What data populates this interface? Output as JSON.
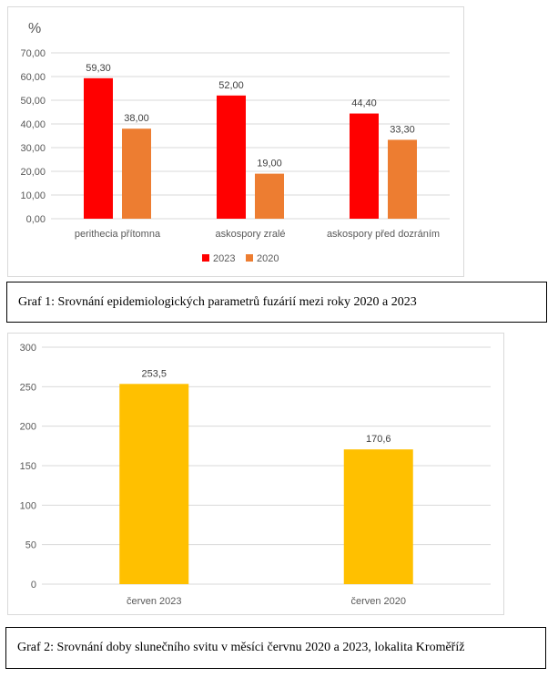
{
  "chart_data": [
    {
      "type": "bar",
      "unit_label": "%",
      "categories": [
        "perithecia přítomna",
        "askospory zralé",
        "askospory před dozráním"
      ],
      "series": [
        {
          "name": "2023",
          "values": [
            59.3,
            52.0,
            44.4
          ],
          "color": "#ff0000"
        },
        {
          "name": "2020",
          "values": [
            38.0,
            19.0,
            33.3
          ],
          "color": "#ed7d31"
        }
      ],
      "data_labels": [
        [
          "59,30",
          "52,00",
          "44,40"
        ],
        [
          "38,00",
          "19,00",
          "33,30"
        ]
      ],
      "ylim": [
        0,
        70
      ],
      "yticks": [
        "0,00",
        "10,00",
        "20,00",
        "30,00",
        "40,00",
        "50,00",
        "60,00",
        "70,00"
      ],
      "grid": true,
      "legend_position": "bottom"
    },
    {
      "type": "bar",
      "categories": [
        "červen 2023",
        "červen 2020"
      ],
      "series": [
        {
          "values": [
            253.5,
            170.6
          ],
          "color": "#ffc000"
        }
      ],
      "data_labels": [
        [
          "253,5",
          "170,6"
        ]
      ],
      "ylim": [
        0,
        300
      ],
      "yticks": [
        "0",
        "50",
        "100",
        "150",
        "200",
        "250",
        "300"
      ],
      "grid": true
    }
  ],
  "captions": {
    "graf1": "Graf 1: Srovnání epidemiologických parametrů fuzárií mezi roky 2020 a 2023",
    "graf2": "Graf 2: Srovnání doby slunečního svitu v měsíci červnu 2020 a 2023, lokalita Kroměříž"
  }
}
